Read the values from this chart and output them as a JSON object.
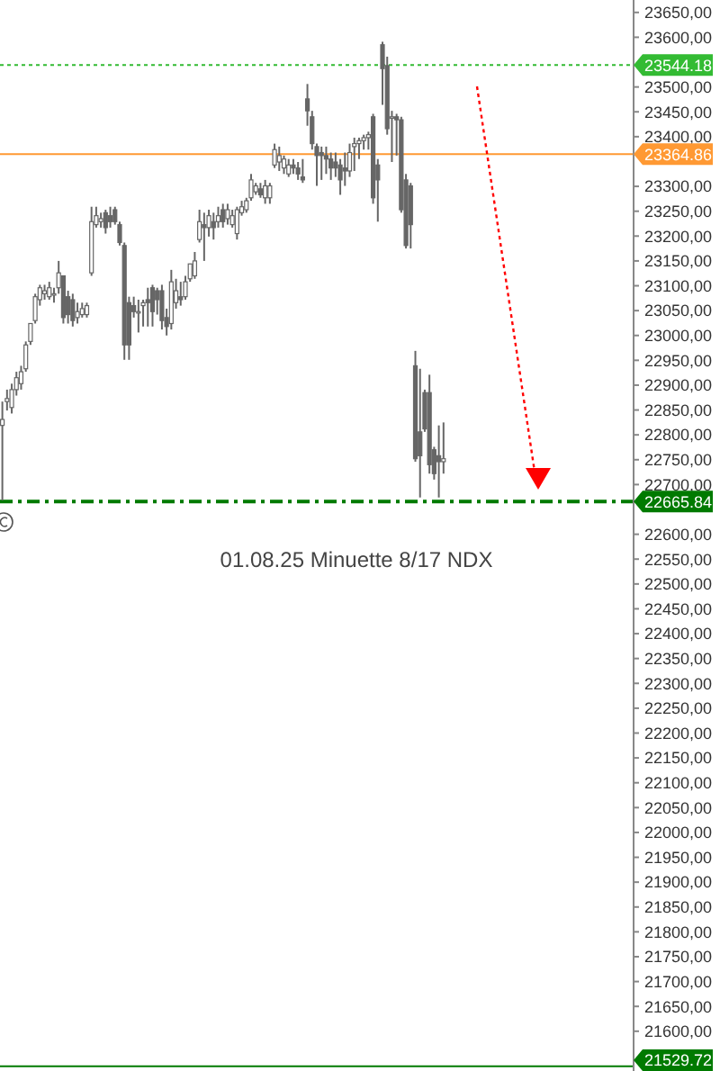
{
  "chart_data": {
    "type": "candlestick",
    "annotations": [
      "01.08.25 Minuette 8/17 NDX"
    ],
    "categories": [
      null,
      null,
      null,
      null,
      null,
      null,
      null,
      null,
      null,
      null,
      null,
      null,
      null,
      null,
      null,
      null,
      null,
      null,
      null,
      null,
      null,
      null,
      null,
      null,
      null,
      null,
      null,
      null,
      null,
      null,
      null,
      null,
      null,
      null,
      null,
      null,
      null,
      null,
      null,
      null,
      null,
      null,
      null,
      null,
      null,
      null,
      null,
      null,
      null,
      null,
      null,
      null,
      null,
      null,
      null,
      null,
      null,
      null,
      null,
      null,
      null,
      null,
      null,
      null,
      null,
      null,
      null,
      null,
      null,
      null,
      null,
      null,
      null,
      null,
      null,
      null,
      null,
      null,
      null,
      null,
      null,
      null,
      null,
      null,
      null,
      null,
      null,
      null,
      null,
      null,
      null,
      null,
      null,
      null,
      null,
      null,
      null,
      null,
      null,
      null,
      null,
      null,
      null,
      null,
      null,
      null,
      null,
      null,
      null,
      null,
      null,
      null,
      null,
      null,
      null,
      null,
      null,
      null,
      null,
      null,
      null,
      null,
      null,
      null,
      null,
      null,
      null,
      null,
      null,
      null,
      null,
      null,
      null,
      null,
      null
    ],
    "color": "#666666",
    "ohlc": [
      [
        22819,
        22867,
        22668,
        22831
      ],
      [
        22867,
        22891,
        22849,
        22873
      ],
      [
        22855,
        22903,
        22843,
        22891
      ],
      [
        22891,
        22927,
        22879,
        22915
      ],
      [
        22903,
        22939,
        22891,
        22927
      ],
      [
        22933,
        22988,
        22927,
        22981
      ],
      [
        22988,
        23024,
        22981,
        23024
      ],
      [
        23030,
        23084,
        23024,
        23078
      ],
      [
        23072,
        23102,
        23060,
        23096
      ],
      [
        23084,
        23102,
        23072,
        23090
      ],
      [
        23078,
        23108,
        23072,
        23096
      ],
      [
        23084,
        23096,
        23066,
        23084
      ],
      [
        23096,
        23150,
        23084,
        23126
      ],
      [
        23120,
        23120,
        23024,
        23036
      ],
      [
        23078,
        23090,
        23024,
        23042
      ],
      [
        23072,
        23084,
        23018,
        23030
      ],
      [
        23036,
        23066,
        23024,
        23048
      ],
      [
        23042,
        23066,
        23036,
        23054
      ],
      [
        23042,
        23066,
        23036,
        23060
      ],
      [
        23126,
        23259,
        23120,
        23229
      ],
      [
        23223,
        23259,
        23217,
        23241
      ],
      [
        23229,
        23247,
        23217,
        23235
      ],
      [
        23247,
        23253,
        23205,
        23217
      ],
      [
        23241,
        23259,
        23217,
        23229
      ],
      [
        23253,
        23259,
        23223,
        23229
      ],
      [
        23223,
        23229,
        23181,
        23187
      ],
      [
        23181,
        23187,
        22951,
        22981
      ],
      [
        23066,
        23078,
        22951,
        22981
      ],
      [
        23060,
        23078,
        23036,
        23048
      ],
      [
        23048,
        23072,
        23006,
        23048
      ],
      [
        23060,
        23072,
        23018,
        23066
      ],
      [
        23072,
        23096,
        23018,
        23066
      ],
      [
        23096,
        23102,
        23018,
        23048
      ],
      [
        23090,
        23096,
        23042,
        23072
      ],
      [
        23090,
        23102,
        23012,
        23030
      ],
      [
        23036,
        23054,
        23000,
        23018
      ],
      [
        23024,
        23132,
        23012,
        23108
      ],
      [
        23066,
        23114,
        23054,
        23090
      ],
      [
        23078,
        23108,
        23060,
        23072
      ],
      [
        23078,
        23120,
        23072,
        23108
      ],
      [
        23114,
        23144,
        23108,
        23144
      ],
      [
        23120,
        23168,
        23114,
        23150
      ],
      [
        23193,
        23253,
        23187,
        23229
      ],
      [
        23223,
        23247,
        23150,
        23217
      ],
      [
        23217,
        23253,
        23199,
        23241
      ],
      [
        23229,
        23247,
        23193,
        23217
      ],
      [
        23229,
        23259,
        23217,
        23241
      ],
      [
        23253,
        23265,
        23217,
        23229
      ],
      [
        23235,
        23265,
        23223,
        23253
      ],
      [
        23223,
        23253,
        23217,
        23241
      ],
      [
        23205,
        23259,
        23193,
        23253
      ],
      [
        23247,
        23271,
        23241,
        23259
      ],
      [
        23253,
        23277,
        23247,
        23271
      ],
      [
        23277,
        23325,
        23271,
        23313
      ],
      [
        23289,
        23307,
        23283,
        23301
      ],
      [
        23295,
        23307,
        23277,
        23283
      ],
      [
        23277,
        23313,
        23265,
        23301
      ],
      [
        23277,
        23307,
        23265,
        23301
      ],
      [
        23343,
        23386,
        23337,
        23374
      ],
      [
        23349,
        23380,
        23331,
        23362
      ],
      [
        23337,
        23362,
        23325,
        23355
      ],
      [
        23325,
        23355,
        23319,
        23343
      ],
      [
        23343,
        23355,
        23325,
        23337
      ],
      [
        23337,
        23349,
        23313,
        23325
      ],
      [
        23319,
        23355,
        23307,
        23313
      ],
      [
        23476,
        23506,
        23422,
        23452
      ],
      [
        23440,
        23452,
        23374,
        23386
      ],
      [
        23380,
        23386,
        23301,
        23362
      ],
      [
        23368,
        23380,
        23313,
        23362
      ],
      [
        23362,
        23380,
        23325,
        23355
      ],
      [
        23355,
        23368,
        23313,
        23337
      ],
      [
        23349,
        23368,
        23319,
        23337
      ],
      [
        23343,
        23355,
        23283,
        23313
      ],
      [
        23337,
        23368,
        23301,
        23331
      ],
      [
        23331,
        23386,
        23319,
        23368
      ],
      [
        23380,
        23398,
        23331,
        23386
      ],
      [
        23386,
        23398,
        23355,
        23392
      ],
      [
        23392,
        23404,
        23374,
        23398
      ],
      [
        23398,
        23410,
        23374,
        23404
      ],
      [
        23440,
        23446,
        23265,
        23277
      ],
      [
        23343,
        23355,
        23229,
        23313
      ],
      [
        23585,
        23591,
        23464,
        23537
      ],
      [
        23543,
        23561,
        23404,
        23416
      ],
      [
        23440,
        23452,
        23349,
        23440
      ],
      [
        23440,
        23446,
        23362,
        23434
      ],
      [
        23434,
        23440,
        23247,
        23253
      ],
      [
        23313,
        23325,
        23175,
        23181
      ],
      [
        23301,
        23307,
        23175,
        23223
      ],
      [
        22939,
        22969,
        22746,
        22752
      ],
      [
        22806,
        22933,
        22674,
        22758
      ],
      [
        22885,
        22891,
        22806,
        22812
      ],
      [
        22885,
        22921,
        22722,
        22740
      ],
      [
        22770,
        22776,
        22710,
        22722
      ],
      [
        22758,
        22819,
        22674,
        22746
      ],
      [
        22746,
        22825,
        22722,
        22752
      ],
      null,
      null,
      null,
      null,
      null,
      null,
      null,
      null,
      null,
      null,
      null,
      null,
      null,
      null,
      null,
      null,
      null,
      null,
      null,
      null,
      null,
      null,
      null,
      null,
      null,
      null,
      null,
      null,
      null,
      null,
      null,
      null,
      null,
      null,
      null,
      null,
      null,
      null,
      null,
      null
    ],
    "ylim": [
      21520,
      23675
    ],
    "yticks": [
      {
        "value": 23650,
        "label": "23650,00"
      },
      {
        "value": 23600,
        "label": "23600,00"
      },
      {
        "value": 23500,
        "label": "23500,00"
      },
      {
        "value": 23450,
        "label": "23450,00"
      },
      {
        "value": 23400,
        "label": "23400,00"
      },
      {
        "value": 23300,
        "label": "23300,00"
      },
      {
        "value": 23250,
        "label": "23250,00"
      },
      {
        "value": 23200,
        "label": "23200,00"
      },
      {
        "value": 23150,
        "label": "23150,00"
      },
      {
        "value": 23100,
        "label": "23100,00"
      },
      {
        "value": 23050,
        "label": "23050,00"
      },
      {
        "value": 23000,
        "label": "23000,00"
      },
      {
        "value": 22950,
        "label": "22950,00"
      },
      {
        "value": 22900,
        "label": "22900,00"
      },
      {
        "value": 22850,
        "label": "22850,00"
      },
      {
        "value": 22800,
        "label": "22800,00"
      },
      {
        "value": 22750,
        "label": "22750,00"
      },
      {
        "value": 22700,
        "label": "22700,00"
      },
      {
        "value": 22600,
        "label": "22600,00"
      },
      {
        "value": 22550,
        "label": "22550,00"
      },
      {
        "value": 22500,
        "label": "22500,00"
      },
      {
        "value": 22450,
        "label": "22450,00"
      },
      {
        "value": 22400,
        "label": "22400,00"
      },
      {
        "value": 22350,
        "label": "22350,00"
      },
      {
        "value": 22300,
        "label": "22300,00"
      },
      {
        "value": 22250,
        "label": "22250,00"
      },
      {
        "value": 22200,
        "label": "22200,00"
      },
      {
        "value": 22150,
        "label": "22150,00"
      },
      {
        "value": 22100,
        "label": "22100,00"
      },
      {
        "value": 22050,
        "label": "22050,00"
      },
      {
        "value": 22000,
        "label": "22000,00"
      },
      {
        "value": 21950,
        "label": "21950,00"
      },
      {
        "value": 21900,
        "label": "21900,00"
      },
      {
        "value": 21850,
        "label": "21850,00"
      },
      {
        "value": 21800,
        "label": "21800,00"
      },
      {
        "value": 21750,
        "label": "21750,00"
      },
      {
        "value": 21700,
        "label": "21700,00"
      },
      {
        "value": 21650,
        "label": "21650,00"
      },
      {
        "value": 21600,
        "label": "21600,00"
      }
    ],
    "grid": false,
    "ref_lines": [
      {
        "axis": "y",
        "value": 23544.18,
        "label": "23544.18",
        "color": "#33bb33",
        "line_style": "dotted"
      },
      {
        "axis": "y",
        "value": 23364.86,
        "label": "23364.86",
        "color": "#ff9933",
        "line_style": "solid"
      },
      {
        "axis": "y",
        "value": 22665.84,
        "label": "22665.84",
        "color": "#007a00",
        "line_style": "dashed"
      },
      {
        "axis": "y",
        "value": 21529.72,
        "label": "21529.72",
        "color": "#007a00",
        "line_style": "solid"
      }
    ]
  }
}
